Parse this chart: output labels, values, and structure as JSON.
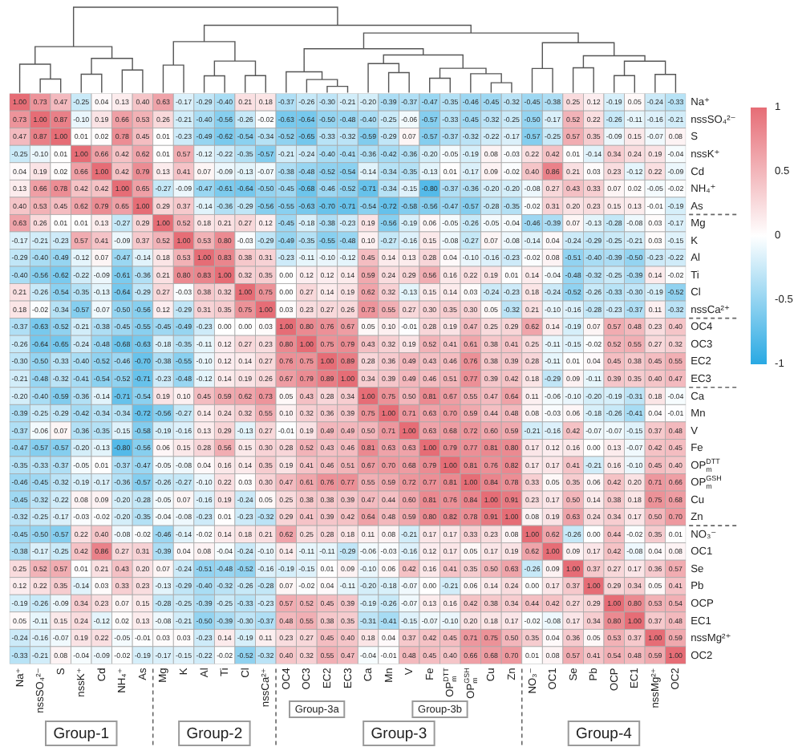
{
  "chart_data": {
    "type": "heatmap",
    "categories": [
      "Na⁺",
      "nssSO₄²⁻",
      "S",
      "nssK⁺",
      "Cd",
      "NH₄⁺",
      "As",
      "Mg",
      "K",
      "Al",
      "Ti",
      "Cl",
      "nssCa²⁺",
      "OC4",
      "OC3",
      "EC2",
      "EC3",
      "Ca",
      "Mn",
      "V",
      "Fe",
      "OP$_{m}$$^{DTT}$",
      "OP$_{m}$$^{GSH}$",
      "Cu",
      "Zn",
      "NO₃⁻",
      "OC1",
      "Se",
      "Pb",
      "OCP",
      "EC1",
      "nssMg²⁺",
      "OC2"
    ],
    "y_categories": [
      "Na⁺",
      "nssSO₄²⁻",
      "S",
      "nssK⁺",
      "Cd",
      "NH₄⁺",
      "As",
      "Mg",
      "K",
      "Al",
      "Ti",
      "Cl",
      "nssCa²⁺",
      "OC4",
      "OC3",
      "EC2",
      "EC3",
      "Ca",
      "Mn",
      "V",
      "Fe",
      "OP$_{m}$$^{DTT}$",
      "OP$_{m}$$^{GSH}$",
      "Cu",
      "Zn",
      "NO₃⁻",
      "OC1",
      "Se",
      "Pb",
      "OCP",
      "EC1",
      "nssMg²⁺",
      "OC2"
    ],
    "cells": [
      [
        1,
        0.73,
        0.47,
        -0.25,
        0.04,
        0.13,
        0.4,
        0.63,
        -0.17,
        -0.29,
        -0.4,
        0.21,
        0.18,
        -0.37,
        -0.26,
        -0.3,
        -0.21,
        -0.2,
        -0.39,
        -0.37,
        -0.47,
        -0.35,
        -0.46,
        -0.45,
        -0.32,
        -0.45,
        -0.38,
        0.25,
        0.12,
        -0.19,
        0.05,
        -0.24,
        -0.33
      ],
      [
        0.73,
        1,
        0.87,
        -0.1,
        0.19,
        0.66,
        0.53,
        0.26,
        -0.21,
        -0.4,
        -0.56,
        -0.26,
        -0.02,
        -0.63,
        -0.64,
        -0.5,
        -0.48,
        -0.4,
        -0.25,
        -0.06,
        -0.57,
        -0.33,
        -0.45,
        -0.32,
        -0.25,
        -0.5,
        -0.17,
        0.52,
        0.22,
        -0.26,
        -0.11,
        -0.16,
        -0.21
      ],
      [
        0.47,
        0.87,
        1,
        0.01,
        0.02,
        0.78,
        0.45,
        0.01,
        -0.23,
        -0.49,
        -0.62,
        -0.54,
        -0.34,
        -0.52,
        -0.65,
        -0.33,
        -0.32,
        -0.59,
        -0.29,
        0.07,
        -0.57,
        -0.37,
        -0.32,
        -0.22,
        -0.17,
        -0.57,
        -0.25,
        0.57,
        0.35,
        -0.09,
        0.15,
        -0.07,
        0.08
      ],
      [
        -0.25,
        -0.1,
        0.01,
        1,
        0.66,
        0.42,
        0.62,
        0.01,
        0.57,
        -0.12,
        -0.22,
        -0.35,
        -0.57,
        -0.21,
        -0.24,
        -0.4,
        -0.41,
        -0.36,
        -0.42,
        -0.36,
        -0.2,
        -0.05,
        -0.19,
        0.08,
        -0.03,
        0.22,
        0.42,
        0.01,
        -0.14,
        0.34,
        0.24,
        0.19,
        -0.04
      ],
      [
        0.04,
        0.19,
        0.02,
        0.66,
        1,
        0.42,
        0.79,
        0.13,
        0.41,
        0.07,
        -0.09,
        -0.13,
        -0.07,
        -0.38,
        -0.48,
        -0.52,
        -0.54,
        -0.14,
        -0.34,
        -0.35,
        -0.13,
        0.01,
        -0.17,
        0.09,
        -0.02,
        0.4,
        0.86,
        0.21,
        0.03,
        0.23,
        -0.12,
        0.22,
        -0.09
      ],
      [
        0.13,
        0.66,
        0.78,
        0.42,
        0.42,
        1,
        0.65,
        -0.27,
        -0.09,
        -0.47,
        -0.61,
        -0.64,
        -0.5,
        -0.45,
        -0.68,
        -0.46,
        -0.52,
        -0.71,
        -0.34,
        -0.15,
        -0.8,
        -0.37,
        -0.36,
        -0.2,
        -0.2,
        -0.08,
        0.27,
        0.43,
        0.33,
        0.07,
        0.02,
        -0.05,
        -0.02
      ],
      [
        0.4,
        0.53,
        0.45,
        0.62,
        0.79,
        0.65,
        1,
        0.29,
        0.37,
        -0.14,
        -0.36,
        -0.29,
        -0.56,
        -0.55,
        -0.63,
        -0.7,
        -0.71,
        -0.54,
        -0.72,
        -0.58,
        -0.56,
        -0.47,
        -0.57,
        -0.28,
        -0.35,
        -0.02,
        0.31,
        0.2,
        0.23,
        0.15,
        0.13,
        -0.01,
        -0.19
      ],
      [
        0.63,
        0.26,
        0.01,
        0.01,
        0.13,
        -0.27,
        0.29,
        1,
        0.52,
        0.18,
        0.21,
        0.27,
        0.12,
        -0.45,
        -0.18,
        -0.38,
        -0.23,
        0.19,
        -0.56,
        -0.19,
        0.06,
        -0.05,
        -0.26,
        -0.05,
        -0.04,
        -0.46,
        -0.39,
        0.07,
        -0.13,
        -0.28,
        -0.08,
        0.03,
        -0.17
      ],
      [
        -0.17,
        -0.21,
        -0.23,
        0.57,
        0.41,
        -0.09,
        0.37,
        0.52,
        1,
        0.53,
        0.8,
        -0.03,
        -0.29,
        -0.49,
        -0.35,
        -0.55,
        -0.48,
        0.1,
        -0.27,
        -0.16,
        0.15,
        -0.08,
        -0.27,
        0.07,
        -0.08,
        -0.14,
        0.04,
        -0.24,
        -0.29,
        -0.25,
        -0.21,
        0.03,
        -0.15
      ],
      [
        -0.29,
        -0.4,
        -0.49,
        -0.12,
        0.07,
        -0.47,
        -0.14,
        0.18,
        0.53,
        1,
        0.83,
        0.38,
        0.31,
        -0.23,
        -0.11,
        -0.1,
        -0.12,
        0.45,
        0.14,
        0.13,
        0.28,
        0.04,
        -0.1,
        -0.16,
        -0.23,
        -0.02,
        0.08,
        -0.51,
        -0.4,
        -0.39,
        -0.5,
        -0.23,
        -0.22
      ],
      [
        -0.4,
        -0.56,
        -0.62,
        -0.22,
        -0.09,
        -0.61,
        -0.36,
        0.21,
        0.8,
        0.83,
        1,
        0.32,
        0.35,
        0,
        0.12,
        0.12,
        0.14,
        0.59,
        0.24,
        0.29,
        0.56,
        0.16,
        0.22,
        0.19,
        0.01,
        0.14,
        -0.04,
        -0.48,
        -0.32,
        -0.25,
        -0.39,
        0.14,
        -0.02
      ],
      [
        0.21,
        -0.26,
        -0.54,
        -0.35,
        -0.13,
        -0.64,
        -0.29,
        0.27,
        -0.03,
        0.38,
        0.32,
        1,
        0.75,
        0,
        0.27,
        0.14,
        0.19,
        0.62,
        0.32,
        -0.13,
        0.15,
        0.14,
        0.03,
        -0.24,
        -0.23,
        0.18,
        -0.24,
        -0.52,
        -0.26,
        -0.33,
        -0.3,
        -0.19,
        -0.52
      ],
      [
        0.18,
        -0.02,
        -0.34,
        -0.57,
        -0.07,
        -0.5,
        -0.56,
        0.12,
        -0.29,
        0.31,
        0.35,
        0.75,
        1,
        0.03,
        0.23,
        0.27,
        0.26,
        0.73,
        0.55,
        0.27,
        0.3,
        0.35,
        0.3,
        0.05,
        -0.32,
        0.21,
        -0.1,
        -0.16,
        -0.28,
        -0.23,
        -0.37,
        0.11,
        -0.32
      ],
      [
        -0.37,
        -0.63,
        -0.52,
        -0.21,
        -0.38,
        -0.45,
        -0.55,
        -0.45,
        -0.49,
        -0.23,
        0,
        0,
        0.03,
        1,
        0.8,
        0.76,
        0.67,
        0.05,
        0.1,
        -0.01,
        0.28,
        0.19,
        0.47,
        0.25,
        0.29,
        0.62,
        0.14,
        -0.19,
        0.07,
        0.57,
        0.48,
        0.23,
        0.4
      ],
      [
        -0.26,
        -0.64,
        -0.65,
        -0.24,
        -0.48,
        -0.68,
        -0.63,
        -0.18,
        -0.35,
        -0.11,
        0.12,
        0.27,
        0.23,
        0.8,
        1,
        0.75,
        0.79,
        0.43,
        0.32,
        0.19,
        0.52,
        0.41,
        0.61,
        0.38,
        0.41,
        0.25,
        -0.11,
        -0.15,
        -0.02,
        0.52,
        0.55,
        0.27,
        0.32
      ],
      [
        -0.3,
        -0.5,
        -0.33,
        -0.4,
        -0.52,
        -0.46,
        -0.7,
        -0.38,
        -0.55,
        -0.1,
        0.12,
        0.14,
        0.27,
        0.76,
        0.75,
        1,
        0.89,
        0.28,
        0.36,
        0.49,
        0.43,
        0.46,
        0.76,
        0.38,
        0.39,
        0.28,
        -0.11,
        0.01,
        0.04,
        0.45,
        0.38,
        0.45,
        0.55
      ],
      [
        -0.21,
        -0.48,
        -0.32,
        -0.41,
        -0.54,
        -0.52,
        -0.71,
        -0.23,
        -0.48,
        -0.12,
        0.14,
        0.19,
        0.26,
        0.67,
        0.79,
        0.89,
        1,
        0.34,
        0.39,
        0.49,
        0.46,
        0.51,
        0.77,
        0.39,
        0.42,
        0.18,
        -0.29,
        0.09,
        -0.11,
        0.39,
        0.35,
        0.4,
        0.47
      ],
      [
        -0.2,
        -0.4,
        -0.59,
        -0.36,
        -0.14,
        -0.71,
        -0.54,
        0.19,
        0.1,
        0.45,
        0.59,
        0.62,
        0.73,
        0.05,
        0.43,
        0.28,
        0.34,
        1,
        0.75,
        0.5,
        0.81,
        0.67,
        0.55,
        0.47,
        0.64,
        0.11,
        -0.06,
        -0.1,
        -0.2,
        -0.19,
        -0.31,
        0.18,
        -0.04
      ],
      [
        -0.39,
        -0.25,
        -0.29,
        -0.42,
        -0.34,
        -0.34,
        -0.72,
        -0.56,
        -0.27,
        0.14,
        0.24,
        0.32,
        0.55,
        0.1,
        0.32,
        0.36,
        0.39,
        0.75,
        1,
        0.71,
        0.63,
        0.7,
        0.59,
        0.44,
        0.48,
        0.08,
        -0.03,
        0.06,
        -0.18,
        -0.26,
        -0.41,
        0.04,
        -0.01
      ],
      [
        -0.37,
        -0.06,
        0.07,
        -0.36,
        -0.35,
        -0.15,
        -0.58,
        -0.19,
        -0.16,
        0.13,
        0.29,
        -0.13,
        0.27,
        -0.01,
        0.19,
        0.49,
        0.49,
        0.5,
        0.71,
        1,
        0.63,
        0.68,
        0.72,
        0.6,
        0.59,
        -0.21,
        -0.16,
        0.42,
        -0.07,
        -0.07,
        -0.15,
        0.37,
        0.48
      ],
      [
        -0.47,
        -0.57,
        -0.57,
        -0.2,
        -0.13,
        -0.8,
        -0.56,
        0.06,
        0.15,
        0.28,
        0.56,
        0.15,
        0.3,
        0.28,
        0.52,
        0.43,
        0.46,
        0.81,
        0.63,
        0.63,
        1,
        0.79,
        0.77,
        0.81,
        0.8,
        0.17,
        0.12,
        0.16,
        0,
        0.13,
        -0.07,
        0.42,
        0.45
      ],
      [
        -0.35,
        -0.33,
        -0.37,
        -0.05,
        0.01,
        -0.37,
        -0.47,
        -0.05,
        -0.08,
        0.04,
        0.16,
        0.14,
        0.35,
        0.19,
        0.41,
        0.46,
        0.51,
        0.67,
        0.7,
        0.68,
        0.79,
        1,
        0.81,
        0.76,
        0.82,
        0.17,
        0.17,
        0.41,
        -0.21,
        0.16,
        -0.1,
        0.45,
        0.4
      ],
      [
        -0.46,
        -0.45,
        -0.32,
        -0.19,
        -0.17,
        -0.36,
        -0.57,
        -0.26,
        -0.27,
        -0.1,
        0.22,
        0.03,
        0.3,
        0.47,
        0.61,
        0.76,
        0.77,
        0.55,
        0.59,
        0.72,
        0.77,
        0.81,
        1,
        0.84,
        0.78,
        0.33,
        0.05,
        0.35,
        0.06,
        0.42,
        0.2,
        0.71,
        0.66
      ],
      [
        -0.45,
        -0.32,
        -0.22,
        0.08,
        0.09,
        -0.2,
        -0.28,
        -0.05,
        0.07,
        -0.16,
        0.19,
        -0.24,
        0.05,
        0.25,
        0.38,
        0.38,
        0.39,
        0.47,
        0.44,
        0.6,
        0.81,
        0.76,
        0.84,
        1,
        0.91,
        0.23,
        0.17,
        0.5,
        0.14,
        0.38,
        0.18,
        0.75,
        0.68
      ],
      [
        -0.32,
        -0.25,
        -0.17,
        -0.03,
        -0.02,
        -0.2,
        -0.35,
        -0.04,
        -0.08,
        -0.23,
        0.01,
        -0.23,
        -0.32,
        0.29,
        0.41,
        0.39,
        0.42,
        0.64,
        0.48,
        0.59,
        0.8,
        0.82,
        0.78,
        0.91,
        1,
        0.08,
        0.19,
        0.63,
        0.24,
        0.34,
        0.17,
        0.5,
        0.7
      ],
      [
        -0.45,
        -0.5,
        -0.57,
        0.22,
        0.4,
        -0.08,
        -0.02,
        -0.46,
        -0.14,
        -0.02,
        0.14,
        0.18,
        0.21,
        0.62,
        0.25,
        0.28,
        0.18,
        0.11,
        0.08,
        -0.21,
        0.17,
        0.17,
        0.33,
        0.23,
        0.08,
        1,
        0.62,
        -0.26,
        0,
        0.44,
        -0.02,
        0.35,
        0.01
      ],
      [
        -0.38,
        -0.17,
        -0.25,
        0.42,
        0.86,
        0.27,
        0.31,
        -0.39,
        0.04,
        0.08,
        -0.04,
        -0.24,
        -0.1,
        0.14,
        -0.11,
        -0.11,
        -0.29,
        -0.06,
        -0.03,
        -0.16,
        0.12,
        0.17,
        0.05,
        0.17,
        0.19,
        0.62,
        1,
        0.09,
        0.17,
        0.42,
        -0.08,
        0.04,
        0.08
      ],
      [
        0.25,
        0.52,
        0.57,
        0.01,
        0.21,
        0.43,
        0.2,
        0.07,
        -0.24,
        -0.51,
        -0.48,
        -0.52,
        -0.16,
        -0.19,
        -0.15,
        0.01,
        0.09,
        -0.1,
        0.06,
        0.42,
        0.16,
        0.41,
        0.35,
        0.5,
        0.63,
        -0.26,
        0.09,
        1,
        0.37,
        0.27,
        0.17,
        0.36,
        0.57
      ],
      [
        0.12,
        0.22,
        0.35,
        -0.14,
        0.03,
        0.33,
        0.23,
        -0.13,
        -0.29,
        -0.4,
        -0.32,
        -0.26,
        -0.28,
        0.07,
        -0.02,
        0.04,
        -0.11,
        -0.2,
        -0.18,
        -0.07,
        0,
        -0.21,
        0.06,
        0.14,
        0.24,
        0,
        0.17,
        0.37,
        1,
        0.29,
        0.34,
        0.05,
        0.41
      ],
      [
        -0.19,
        -0.26,
        -0.09,
        0.34,
        0.23,
        0.07,
        0.15,
        -0.28,
        -0.25,
        -0.39,
        -0.25,
        -0.33,
        -0.23,
        0.57,
        0.52,
        0.45,
        0.39,
        -0.19,
        -0.26,
        -0.07,
        0.13,
        0.16,
        0.42,
        0.38,
        0.34,
        0.44,
        0.42,
        0.27,
        0.29,
        1,
        0.8,
        0.53,
        0.54
      ],
      [
        0.05,
        -0.11,
        0.15,
        0.24,
        -0.12,
        0.02,
        0.13,
        -0.08,
        -0.21,
        -0.5,
        -0.39,
        -0.3,
        -0.37,
        0.48,
        0.55,
        0.38,
        0.35,
        -0.31,
        -0.41,
        -0.15,
        -0.07,
        -0.1,
        0.2,
        0.18,
        0.17,
        -0.02,
        -0.08,
        0.17,
        0.34,
        0.8,
        1,
        0.37,
        0.48
      ],
      [
        -0.24,
        -0.16,
        -0.07,
        0.19,
        0.22,
        -0.05,
        -0.01,
        0.03,
        0.03,
        -0.23,
        0.14,
        -0.19,
        0.11,
        0.23,
        0.27,
        0.45,
        0.4,
        0.18,
        0.04,
        0.37,
        0.42,
        0.45,
        0.71,
        0.75,
        0.5,
        0.35,
        0.04,
        0.36,
        0.05,
        0.53,
        0.37,
        1,
        0.59
      ],
      [
        -0.33,
        -0.21,
        0.08,
        -0.04,
        -0.09,
        -0.02,
        -0.19,
        -0.17,
        -0.15,
        -0.22,
        -0.02,
        -0.52,
        -0.32,
        0.4,
        0.32,
        0.55,
        0.47,
        -0.04,
        -0.01,
        0.48,
        0.45,
        0.4,
        0.66,
        0.68,
        0.7,
        0.01,
        0.08,
        0.57,
        0.41,
        0.54,
        0.48,
        0.59,
        1
      ]
    ],
    "cell_labels": [
      [
        "1.00",
        "0.73",
        "0.47",
        "-0.25",
        "0.04",
        "0.13",
        "0.40",
        "0.63",
        "-0.17",
        "-0.29",
        "-0.40",
        "0.21",
        "0.18",
        "-0.37",
        "-0.26",
        "-0.30",
        "-0.21",
        "-0.20",
        "-0.39",
        "-0.37",
        "-0.47",
        "-0.35",
        "-0.46",
        "-0.45",
        "-0.32",
        "-0.45",
        "-0.38",
        "0.25",
        "0.12",
        "-0.19",
        "0.05",
        "-0.24",
        "-0.33"
      ],
      [
        "0.73",
        "1.00",
        "0.87",
        "-0.10",
        "0.19",
        "0.66",
        "0.53",
        "0.26",
        "-0.21",
        "-0.40",
        "-0.56",
        "-0.26",
        "-0.02",
        "-0.63",
        "-0.64",
        "-0.50",
        "-0.48",
        "-0.40",
        "-0.25",
        "-0.06",
        "-0.57",
        "-0.33",
        "-0.45",
        "-0.32",
        "-0.25",
        "-0.50",
        "-0.17",
        "0.52",
        "0.22",
        "-0.26",
        "-0.11",
        "-0.16",
        "-0.21"
      ],
      [
        "0.47",
        "0.87",
        "1.00",
        "0.01",
        "0.02",
        "0.78",
        "0.45",
        "0.01",
        "-0.23",
        "-0.49",
        "-0.62",
        "-0.54",
        "-0.34",
        "-0.52",
        "-0.65",
        "-0.33",
        "-0.32",
        "-0.59",
        "-0.29",
        "0.07",
        "-0.57",
        "-0.37",
        "-0.32",
        "-0.22",
        "-0.17",
        "-0.57",
        "-0.25",
        "0.57",
        "0.35",
        "-0.09",
        "0.15",
        "-0.07",
        "0.08"
      ],
      [
        "-0.25",
        "-0.10",
        "0.01",
        "1.00",
        "0.66",
        "0.42",
        "0.62",
        "0.01",
        "0.57",
        "-0.12",
        "-0.22",
        "-0.35",
        "-0.57",
        "-0.21",
        "-0.24",
        "-0.40",
        "-0.41",
        "-0.36",
        "-0.42",
        "-0.36",
        "-0.20",
        "-0.05",
        "-0.19",
        "0.08",
        "-0.03",
        "0.22",
        "0.42",
        "0.01",
        "-0.14",
        "0.34",
        "0.24",
        "0.19",
        "-0.04"
      ],
      [
        "0.04",
        "0.19",
        "0.02",
        "0.66",
        "1.00",
        "0.42",
        "0.79",
        "0.13",
        "0.41",
        "0.07",
        "-0.09",
        "-0.13",
        "-0.07",
        "-0.38",
        "-0.48",
        "-0.52",
        "-0.54",
        "-0.14",
        "-0.34",
        "-0.35",
        "-0.13",
        "0.01",
        "-0.17",
        "0.09",
        "-0.02",
        "0.40",
        "0.86",
        "0.21",
        "0.03",
        "0.23",
        "-0.12",
        "0.22",
        "-0.09"
      ],
      [
        "0.13",
        "0.66",
        "0.78",
        "0.42",
        "0.42",
        "1.00",
        "0.65",
        "-0.27",
        "-0.09",
        "-0.47",
        "-0.61",
        "-0.64",
        "-0.50",
        "-0.45",
        "-0.68",
        "-0.46",
        "-0.52",
        "-0.71",
        "-0.34",
        "-0.15",
        "-0.80",
        "-0.37",
        "-0.36",
        "-0.20",
        "-0.20",
        "-0.08",
        "0.27",
        "0.43",
        "0.33",
        "0.07",
        "0.02",
        "-0.05",
        "-0.02"
      ],
      [
        "0.40",
        "0.53",
        "0.45",
        "0.62",
        "0.79",
        "0.65",
        "1.00",
        "0.29",
        "0.37",
        "-0.14",
        "-0.36",
        "-0.29",
        "-0.56",
        "-0.55",
        "-0.63",
        "-0.70",
        "-0.71",
        "-0.54",
        "-0.72",
        "-0.58",
        "-0.56",
        "-0.47",
        "-0.57",
        "-0.28",
        "-0.35",
        "-0.02",
        "0.31",
        "0.20",
        "0.23",
        "0.15",
        "0.13",
        "-0.01",
        "-0.19"
      ],
      [
        "0.63",
        "0.26",
        "0.01",
        "0.01",
        "0.13",
        "-0.27",
        "0.29",
        "1.00",
        "0.52",
        "0.18",
        "0.21",
        "0.27",
        "0.12",
        "-0.45",
        "-0.18",
        "-0.38",
        "-0.23",
        "0.19",
        "-0.56",
        "-0.19",
        "0.06",
        "-0.05",
        "-0.26",
        "-0.05",
        "-0.04",
        "-0.46",
        "-0.39",
        "0.07",
        "-0.13",
        "-0.28",
        "-0.08",
        "0.03",
        "-0.17"
      ],
      [
        "-0.17",
        "-0.21",
        "-0.23",
        "0.57",
        "0.41",
        "-0.09",
        "0.37",
        "0.52",
        "1.00",
        "0.53",
        "0.80",
        "-0.03",
        "-0.29",
        "-0.49",
        "-0.35",
        "-0.55",
        "-0.48",
        "0.10",
        "-0.27",
        "-0.16",
        "0.15",
        "-0.08",
        "-0.27",
        "0.07",
        "-0.08",
        "-0.14",
        "0.04",
        "-0.24",
        "-0.29",
        "-0.25",
        "-0.21",
        "0.03",
        "-0.15"
      ],
      [
        "-0.29",
        "-0.40",
        "-0.49",
        "-0.12",
        "0.07",
        "-0.47",
        "-0.14",
        "0.18",
        "0.53",
        "1.00",
        "0.83",
        "0.38",
        "0.31",
        "-0.23",
        "-0.11",
        "-0.10",
        "-0.12",
        "0.45",
        "0.14",
        "0.13",
        "0.28",
        "0.04",
        "-0.10",
        "-0.16",
        "-0.23",
        "-0.02",
        "0.08",
        "-0.51",
        "-0.40",
        "-0.39",
        "-0.50",
        "-0.23",
        "-0.22"
      ],
      [
        "-0.40",
        "-0.56",
        "-0.62",
        "-0.22",
        "-0.09",
        "-0.61",
        "-0.36",
        "0.21",
        "0.80",
        "0.83",
        "1.00",
        "0.32",
        "0.35",
        "0.00",
        "0.12",
        "0.12",
        "0.14",
        "0.59",
        "0.24",
        "0.29",
        "0.56",
        "0.16",
        "0.22",
        "0.19",
        "0.01",
        "0.14",
        "-0.04",
        "-0.48",
        "-0.32",
        "-0.25",
        "-0.39",
        "0.14",
        "-0.02"
      ],
      [
        "0.21",
        "-0.26",
        "-0.54",
        "-0.35",
        "-0.13",
        "-0.64",
        "-0.29",
        "0.27",
        "-0.03",
        "0.38",
        "0.32",
        "1.00",
        "0.75",
        "0.00",
        "0.27",
        "0.14",
        "0.19",
        "0.62",
        "0.32",
        "-0.13",
        "0.15",
        "0.14",
        "0.03",
        "-0.24",
        "-0.23",
        "0.18",
        "-0.24",
        "-0.52",
        "-0.26",
        "-0.33",
        "-0.30",
        "-0.19",
        "-0.52"
      ],
      [
        "0.18",
        "-0.02",
        "-0.34",
        "-0.57",
        "-0.07",
        "-0.50",
        "-0.56",
        "0.12",
        "-0.29",
        "0.31",
        "0.35",
        "0.75",
        "1.00",
        "0.03",
        "0.23",
        "0.27",
        "0.26",
        "0.73",
        "0.55",
        "0.27",
        "0.30",
        "0.35",
        "0.30",
        "0.05",
        "-0.32",
        "0.21",
        "-0.10",
        "-0.16",
        "-0.28",
        "-0.23",
        "-0.37",
        "0.11",
        "-0.32"
      ],
      [
        "-0.37",
        "-0.63",
        "-0.52",
        "-0.21",
        "-0.38",
        "-0.45",
        "-0.55",
        "-0.45",
        "-0.49",
        "-0.23",
        "0.00",
        "0.00",
        "0.03",
        "1.00",
        "0.80",
        "0.76",
        "0.67",
        "0.05",
        "0.10",
        "-0.01",
        "0.28",
        "0.19",
        "0.47",
        "0.25",
        "0.29",
        "0.62",
        "0.14",
        "-0.19",
        "0.07",
        "0.57",
        "0.48",
        "0.23",
        "0.40"
      ],
      [
        "-0.26",
        "-0.64",
        "-0.65",
        "-0.24",
        "-0.48",
        "-0.68",
        "-0.63",
        "-0.18",
        "-0.35",
        "-0.11",
        "0.12",
        "0.27",
        "0.23",
        "0.80",
        "1.00",
        "0.75",
        "0.79",
        "0.43",
        "0.32",
        "0.19",
        "0.52",
        "0.41",
        "0.61",
        "0.38",
        "0.41",
        "0.25",
        "-0.11",
        "-0.15",
        "-0.02",
        "0.52",
        "0.55",
        "0.27",
        "0.32"
      ],
      [
        "-0.30",
        "-0.50",
        "-0.33",
        "-0.40",
        "-0.52",
        "-0.46",
        "-0.70",
        "-0.38",
        "-0.55",
        "-0.10",
        "0.12",
        "0.14",
        "0.27",
        "0.76",
        "0.75",
        "1.00",
        "0.89",
        "0.28",
        "0.36",
        "0.49",
        "0.43",
        "0.46",
        "0.76",
        "0.38",
        "0.39",
        "0.28",
        "-0.11",
        "0.01",
        "0.04",
        "0.45",
        "0.38",
        "0.45",
        "0.55"
      ],
      [
        "-0.21",
        "-0.48",
        "-0.32",
        "-0.41",
        "-0.54",
        "-0.52",
        "-0.71",
        "-0.23",
        "-0.48",
        "-0.12",
        "0.14",
        "0.19",
        "0.26",
        "0.67",
        "0.79",
        "0.89",
        "1.00",
        "0.34",
        "0.39",
        "0.49",
        "0.46",
        "0.51",
        "0.77",
        "0.39",
        "0.42",
        "0.18",
        "-0.29",
        "0.09",
        "-0.11",
        "0.39",
        "0.35",
        "0.40",
        "0.47"
      ],
      [
        "-0.20",
        "-0.40",
        "-0.59",
        "-0.36",
        "-0.14",
        "-0.71",
        "-0.54",
        "0.19",
        "0.10",
        "0.45",
        "0.59",
        "0.62",
        "0.73",
        "0.05",
        "0.43",
        "0.28",
        "0.34",
        "1.00",
        "0.75",
        "0.50",
        "0.81",
        "0.67",
        "0.55",
        "0.47",
        "0.64",
        "0.11",
        "-0.06",
        "-0.10",
        "-0.20",
        "-0.19",
        "-0.31",
        "0.18",
        "-0.04"
      ],
      [
        "-0.39",
        "-0.25",
        "-0.29",
        "-0.42",
        "-0.34",
        "-0.34",
        "-0.72",
        "-0.56",
        "-0.27",
        "0.14",
        "0.24",
        "0.32",
        "0.55",
        "0.10",
        "0.32",
        "0.36",
        "0.39",
        "0.75",
        "1.00",
        "0.71",
        "0.63",
        "0.70",
        "0.59",
        "0.44",
        "0.48",
        "0.08",
        "-0.03",
        "0.06",
        "-0.18",
        "-0.26",
        "-0.41",
        "0.04",
        "-0.01"
      ],
      [
        "-0.37",
        "-0.06",
        "0.07",
        "-0.36",
        "-0.35",
        "-0.15",
        "-0.58",
        "-0.19",
        "-0.16",
        "0.13",
        "0.29",
        "-0.13",
        "0.27",
        "-0.01",
        "0.19",
        "0.49",
        "0.49",
        "0.50",
        "0.71",
        "1.00",
        "0.63",
        "0.68",
        "0.72",
        "0.60",
        "0.59",
        "-0.21",
        "-0.16",
        "0.42",
        "-0.07",
        "-0.07",
        "-0.15",
        "0.37",
        "0.48"
      ],
      [
        "-0.47",
        "-0.57",
        "-0.57",
        "-0.20",
        "-0.13",
        "-0.80",
        "-0.56",
        "0.06",
        "0.15",
        "0.28",
        "0.56",
        "0.15",
        "0.30",
        "0.28",
        "0.52",
        "0.43",
        "0.46",
        "0.81",
        "0.63",
        "0.63",
        "1.00",
        "0.79",
        "0.77",
        "0.81",
        "0.80",
        "0.17",
        "0.12",
        "0.16",
        "0.00",
        "0.13",
        "-0.07",
        "0.42",
        "0.45"
      ],
      [
        "-0.35",
        "-0.33",
        "-0.37",
        "-0.05",
        "0.01",
        "-0.37",
        "-0.47",
        "-0.05",
        "-0.08",
        "0.04",
        "0.16",
        "0.14",
        "0.35",
        "0.19",
        "0.41",
        "0.46",
        "0.51",
        "0.67",
        "0.70",
        "0.68",
        "0.79",
        "1.00",
        "0.81",
        "0.76",
        "0.82",
        "0.17",
        "0.17",
        "0.41",
        "-0.21",
        "0.16",
        "-0.10",
        "0.45",
        "0.40"
      ],
      [
        "-0.46",
        "-0.45",
        "-0.32",
        "-0.19",
        "-0.17",
        "-0.36",
        "-0.57",
        "-0.26",
        "-0.27",
        "-0.10",
        "0.22",
        "0.03",
        "0.30",
        "0.47",
        "0.61",
        "0.76",
        "0.77",
        "0.55",
        "0.59",
        "0.72",
        "0.77",
        "0.81",
        "1.00",
        "0.84",
        "0.78",
        "0.33",
        "0.05",
        "0.35",
        "0.06",
        "0.42",
        "0.20",
        "0.71",
        "0.66"
      ],
      [
        "-0.45",
        "-0.32",
        "-0.22",
        "0.08",
        "0.09",
        "-0.20",
        "-0.28",
        "-0.05",
        "0.07",
        "-0.16",
        "0.19",
        "-0.24",
        "0.05",
        "0.25",
        "0.38",
        "0.38",
        "0.39",
        "0.47",
        "0.44",
        "0.60",
        "0.81",
        "0.76",
        "0.84",
        "1.00",
        "0.91",
        "0.23",
        "0.17",
        "0.50",
        "0.14",
        "0.38",
        "0.18",
        "0.75",
        "0.68"
      ],
      [
        "-0.32",
        "-0.25",
        "-0.17",
        "-0.03",
        "-0.02",
        "-0.20",
        "-0.35",
        "-0.04",
        "-0.08",
        "-0.23",
        "0.01",
        "-0.23",
        "-0.32",
        "0.29",
        "0.41",
        "0.39",
        "0.42",
        "0.64",
        "0.48",
        "0.59",
        "0.80",
        "0.82",
        "0.78",
        "0.91",
        "1.00",
        "0.08",
        "0.19",
        "0.63",
        "0.24",
        "0.34",
        "0.17",
        "0.50",
        "0.70"
      ],
      [
        "-0.45",
        "-0.50",
        "-0.57",
        "0.22",
        "0.40",
        "-0.08",
        "-0.02",
        "-0.46",
        "-0.14",
        "-0.02",
        "0.14",
        "0.18",
        "0.21",
        "0.62",
        "0.25",
        "0.28",
        "0.18",
        "0.11",
        "0.08",
        "-0.21",
        "0.17",
        "0.17",
        "0.33",
        "0.23",
        "0.08",
        "1.00",
        "0.62",
        "-0.26",
        "0.00",
        "0.44",
        "-0.02",
        "0.35",
        "0.01"
      ],
      [
        "-0.38",
        "-0.17",
        "-0.25",
        "0.42",
        "0.86",
        "0.27",
        "0.31",
        "-0.39",
        "0.04",
        "0.08",
        "-0.04",
        "-0.24",
        "-0.10",
        "0.14",
        "-0.11",
        "-0.11",
        "-0.29",
        "-0.06",
        "-0.03",
        "-0.16",
        "0.12",
        "0.17",
        "0.05",
        "0.17",
        "0.19",
        "0.62",
        "1.00",
        "0.09",
        "0.17",
        "0.42",
        "-0.08",
        "0.04",
        "0.08"
      ],
      [
        "0.25",
        "0.52",
        "0.57",
        "0.01",
        "0.21",
        "0.43",
        "0.20",
        "0.07",
        "-0.24",
        "-0.51",
        "-0.48",
        "-0.52",
        "-0.16",
        "-0.19",
        "-0.15",
        "0.01",
        "0.09",
        "-0.10",
        "0.06",
        "0.42",
        "0.16",
        "0.41",
        "0.35",
        "0.50",
        "0.63",
        "-0.26",
        "0.09",
        "1.00",
        "0.37",
        "0.27",
        "0.17",
        "0.36",
        "0.57"
      ],
      [
        "0.12",
        "0.22",
        "0.35",
        "-0.14",
        "0.03",
        "0.33",
        "0.23",
        "-0.13",
        "-0.29",
        "-0.40",
        "-0.32",
        "-0.26",
        "-0.28",
        "0.07",
        "-0.02",
        "0.04",
        "-0.11",
        "-0.20",
        "-0.18",
        "-0.07",
        "0.00",
        "-0.21",
        "0.06",
        "0.14",
        "0.24",
        "0.00",
        "0.17",
        "0.37",
        "1.00",
        "0.29",
        "0.34",
        "0.05",
        "0.41"
      ],
      [
        "-0.19",
        "-0.26",
        "-0.09",
        "0.34",
        "0.23",
        "0.07",
        "0.15",
        "-0.28",
        "-0.25",
        "-0.39",
        "-0.25",
        "-0.33",
        "-0.23",
        "0.57",
        "0.52",
        "0.45",
        "0.39",
        "-0.19",
        "-0.26",
        "-0.07",
        "0.13",
        "0.16",
        "0.42",
        "0.38",
        "0.34",
        "0.44",
        "0.42",
        "0.27",
        "0.29",
        "1.00",
        "0.80",
        "0.53",
        "0.54"
      ],
      [
        "0.05",
        "-0.11",
        "0.15",
        "0.24",
        "-0.12",
        "0.02",
        "0.13",
        "-0.08",
        "-0.21",
        "-0.50",
        "-0.39",
        "-0.30",
        "-0.37",
        "0.48",
        "0.55",
        "0.38",
        "0.35",
        "-0.31",
        "-0.41",
        "-0.15",
        "-0.07",
        "-0.10",
        "0.20",
        "0.18",
        "0.17",
        "-0.02",
        "-0.08",
        "0.17",
        "0.34",
        "0.80",
        "1.00",
        "0.37",
        "0.48"
      ],
      [
        "-0.24",
        "-0.16",
        "-0.07",
        "0.19",
        "0.22",
        "-0.05",
        "-0.01",
        "0.03",
        "0.03",
        "-0.23",
        "0.14",
        "-0.19",
        "0.11",
        "0.23",
        "0.27",
        "0.45",
        "0.40",
        "0.18",
        "0.04",
        "0.37",
        "0.42",
        "0.45",
        "0.71",
        "0.75",
        "0.50",
        "0.35",
        "0.04",
        "0.36",
        "0.05",
        "0.53",
        "0.37",
        "1.00",
        "0.59"
      ],
      [
        "-0.33",
        "-0.21",
        "0.08",
        "-0.04",
        "-0.09",
        "-0.02",
        "-0.19",
        "-0.17",
        "-0.15",
        "-0.22",
        "-0.02",
        "-0.52",
        "-0.32",
        "0.40",
        "0.32",
        "0.55",
        "0.47",
        "-0.04",
        "-0.01",
        "0.48",
        "0.45",
        "0.40",
        "0.66",
        "0.68",
        "0.70",
        "0.01",
        "0.08",
        "0.57",
        "0.41",
        "0.54",
        "0.48",
        "0.59",
        "1.00"
      ]
    ],
    "clim": [
      -1,
      1
    ],
    "cticks": [
      -1,
      -0.5,
      0,
      0.5,
      1
    ],
    "colors": [
      "#29a9e3",
      "#ffffff",
      "#e66d76"
    ],
    "data_labels": true,
    "annotations": [
      "Group-1",
      "Group-2",
      "Group-3a",
      "Group-3",
      "Group-3b",
      "Group-4"
    ]
  }
}
